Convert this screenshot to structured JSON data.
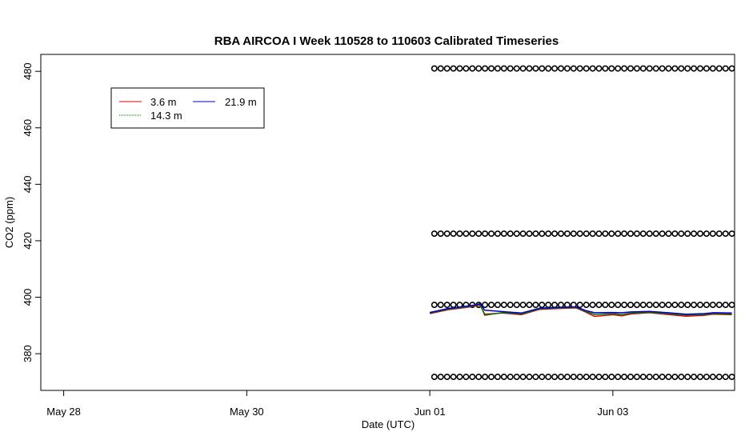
{
  "chart_data": {
    "type": "line",
    "title": "RBA AIRCOA I  Week 110528 to 110603  Calibrated Timeseries",
    "xlabel": "Date (UTC)",
    "ylabel": "CO2 (ppm)",
    "x_range": [
      "2011-05-27 18:00",
      "2011-06-04 08:00"
    ],
    "xlim_days": [
      -0.25,
      7.33
    ],
    "ylim": [
      367,
      486
    ],
    "x_ticks": [
      {
        "day": 0,
        "label": "May 28"
      },
      {
        "day": 2,
        "label": "May 30"
      },
      {
        "day": 4,
        "label": "Jun 01"
      },
      {
        "day": 6,
        "label": "Jun 03"
      }
    ],
    "y_ticks": [
      380,
      400,
      420,
      440,
      460,
      480
    ],
    "grid": false,
    "legend": {
      "placement": "top-left",
      "entries": [
        {
          "label": "3.6 m",
          "color": "#dd0000"
        },
        {
          "label": "14.3 m",
          "color": "#007700"
        },
        {
          "label": "21.9 m",
          "color": "#0000cc"
        }
      ]
    },
    "series": [
      {
        "name": "3.6 m",
        "color": "#dd0000",
        "x": [
          4.0,
          4.2,
          4.4,
          4.5,
          4.55,
          4.6,
          4.8,
          5.0,
          5.2,
          5.4,
          5.6,
          5.7,
          5.8,
          6.0,
          6.1,
          6.2,
          6.4,
          6.6,
          6.8,
          7.0,
          7.1,
          7.3
        ],
        "y": [
          394.2,
          395.6,
          396.4,
          396.9,
          397.3,
          394.0,
          394.4,
          393.8,
          395.7,
          396.0,
          396.2,
          394.8,
          393.2,
          393.8,
          393.4,
          394.1,
          394.5,
          393.9,
          393.3,
          393.6,
          394.0,
          393.8
        ]
      },
      {
        "name": "14.3 m",
        "color": "#007700",
        "x": [
          4.0,
          4.2,
          4.4,
          4.5,
          4.55,
          4.6,
          4.8,
          5.0,
          5.2,
          5.4,
          5.6,
          5.7,
          5.8,
          6.0,
          6.1,
          6.2,
          6.4,
          6.6,
          6.8,
          7.0,
          7.1,
          7.3
        ],
        "y": [
          394.4,
          395.8,
          396.6,
          397.1,
          397.5,
          393.6,
          394.6,
          394.1,
          395.9,
          396.2,
          396.4,
          395.0,
          393.9,
          394.2,
          393.9,
          394.4,
          394.7,
          394.2,
          393.7,
          393.9,
          394.2,
          394.1
        ]
      },
      {
        "name": "21.9 m",
        "color": "#0000cc",
        "x": [
          4.0,
          4.2,
          4.4,
          4.5,
          4.55,
          4.6,
          4.8,
          5.0,
          5.2,
          5.4,
          5.6,
          5.7,
          5.8,
          6.0,
          6.1,
          6.2,
          6.4,
          6.6,
          6.8,
          7.0,
          7.1,
          7.3
        ],
        "y": [
          394.6,
          396.0,
          396.8,
          397.3,
          397.7,
          395.4,
          394.9,
          394.4,
          396.1,
          396.4,
          396.6,
          395.3,
          394.5,
          394.6,
          394.5,
          394.8,
          395.0,
          394.5,
          394.0,
          394.2,
          394.5,
          394.4
        ]
      }
    ],
    "calibration_points": {
      "marker": "open-circle",
      "levels": [
        481,
        422.5,
        397.3,
        371.8
      ],
      "x_start_day": 4.05,
      "x_end_day": 7.3,
      "count_per_level": 48
    }
  }
}
